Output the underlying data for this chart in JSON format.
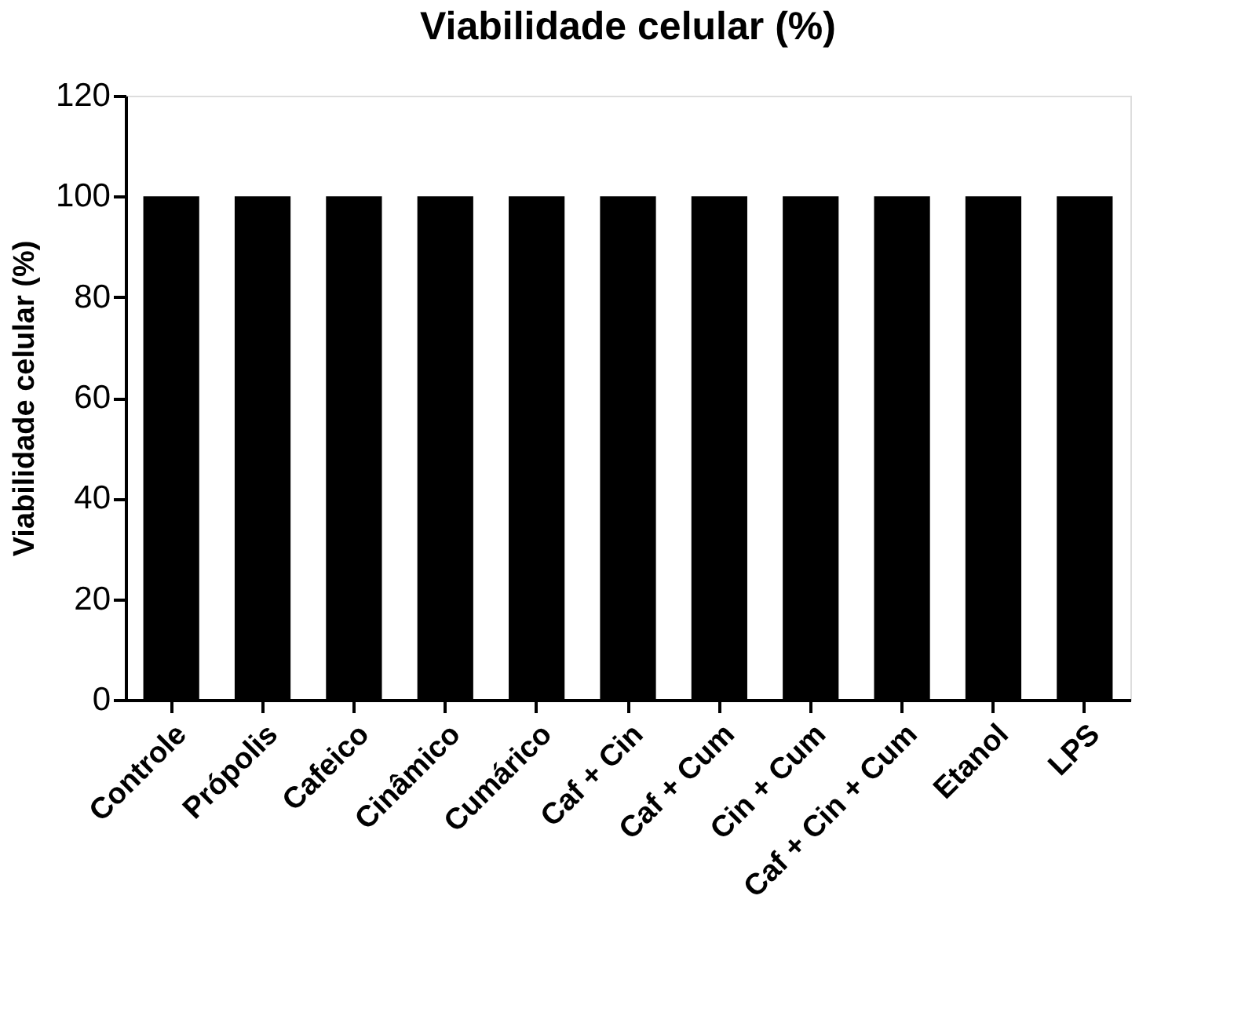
{
  "chart_data": {
    "type": "bar",
    "title": "Viabilidade celular (%)",
    "ylabel": "Viabilidade celular (%)",
    "categories": [
      "Controle",
      "Própolis",
      "Cafeico",
      "Cinâmico",
      "Cumárico",
      "Caf + Cin",
      "Caf + Cum",
      "Cin + Cum",
      "Caf + Cin + Cum",
      "Etanol",
      "LPS"
    ],
    "values": [
      100,
      100,
      100,
      100,
      100,
      100,
      100,
      100,
      100,
      100,
      100
    ],
    "color": "#000000",
    "ylim": [
      0,
      120
    ],
    "yticks": [
      0,
      20,
      40,
      60,
      80,
      100,
      120
    ],
    "grid": false
  }
}
